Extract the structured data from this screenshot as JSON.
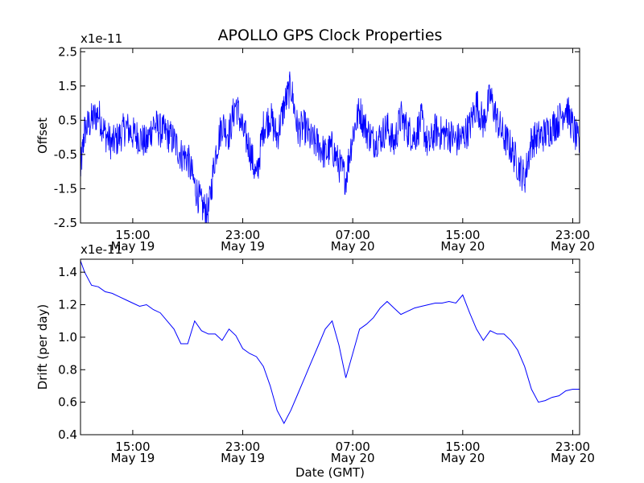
{
  "chart_data": [
    {
      "type": "line",
      "title": "APOLLO GPS Clock Properties",
      "ylabel": "Offset",
      "xlabel": "",
      "y_multiplier": "x1e-11",
      "ylim": [
        -2.5,
        2.6
      ],
      "xlim_hours": [
        11.2,
        47.5
      ],
      "x_ticks": [
        {
          "time": "15:00",
          "date": "May 19"
        },
        {
          "time": "23:00",
          "date": "May 19"
        },
        {
          "time": "07:00",
          "date": "May 20"
        },
        {
          "time": "15:00",
          "date": "May 20"
        },
        {
          "time": "23:00",
          "date": "May 20"
        }
      ],
      "y_ticks": [
        "2.5",
        "1.5",
        "0.5",
        "-0.5",
        "-1.5",
        "-2.5"
      ],
      "color": "#0000ff",
      "series": [
        {
          "x": [
            11.2,
            11.5,
            12.0,
            12.5,
            13.0,
            13.5,
            14.0,
            14.5,
            15.0,
            15.5,
            16.0,
            16.5,
            17.0,
            17.5,
            18.0,
            18.5,
            19.0,
            19.5,
            20.0,
            20.5,
            21.0,
            21.5,
            22.0,
            22.5,
            23.0,
            23.5,
            24.0,
            24.5,
            25.0,
            25.5,
            26.0,
            26.5,
            27.0,
            27.5,
            28.0,
            28.5,
            29.0,
            29.5,
            30.0,
            30.5,
            31.0,
            31.5,
            32.0,
            32.5,
            33.0,
            33.5,
            34.0,
            34.5,
            35.0,
            35.5,
            36.0,
            36.5,
            37.0,
            37.5,
            38.0,
            38.5,
            39.0,
            39.5,
            40.0,
            40.5,
            41.0,
            41.5,
            42.0,
            42.5,
            43.0,
            43.5,
            44.0,
            44.5,
            45.0,
            45.5,
            46.0,
            46.5,
            47.0,
            47.5
          ],
          "y": [
            -1.0,
            0.2,
            0.5,
            0.7,
            0.1,
            -0.2,
            0.0,
            0.3,
            0.1,
            0.0,
            -0.2,
            0.4,
            0.2,
            0.1,
            -0.1,
            -0.5,
            -0.6,
            -1.4,
            -2.0,
            -2.2,
            -0.5,
            0.4,
            0.1,
            1.0,
            0.2,
            -0.3,
            -1.2,
            0.3,
            0.6,
            0.0,
            0.9,
            1.5,
            0.2,
            0.3,
            -0.1,
            -0.2,
            -0.5,
            -0.3,
            -0.8,
            -1.2,
            0.1,
            0.8,
            0.2,
            -0.1,
            0.0,
            0.3,
            -0.2,
            0.6,
            0.2,
            0.0,
            0.5,
            -0.3,
            0.2,
            0.1,
            0.1,
            -0.1,
            0.0,
            0.3,
            1.0,
            0.4,
            1.2,
            0.5,
            0.0,
            -0.3,
            -0.8,
            -1.2,
            -0.1,
            0.0,
            0.1,
            0.3,
            0.5,
            0.9,
            0.3,
            -0.3
          ]
        }
      ]
    },
    {
      "type": "line",
      "title": "",
      "ylabel": "Drift (per day)",
      "xlabel": "Date (GMT)",
      "y_multiplier": "x1e-11",
      "ylim": [
        0.4,
        1.48
      ],
      "xlim_hours": [
        11.2,
        47.5
      ],
      "x_ticks": [
        {
          "time": "15:00",
          "date": "May 19"
        },
        {
          "time": "23:00",
          "date": "May 19"
        },
        {
          "time": "07:00",
          "date": "May 20"
        },
        {
          "time": "15:00",
          "date": "May 20"
        },
        {
          "time": "23:00",
          "date": "May 20"
        }
      ],
      "y_ticks": [
        "1.4",
        "1.2",
        "1.0",
        "0.8",
        "0.6",
        "0.4"
      ],
      "color": "#0000ff",
      "series": [
        {
          "x": [
            11.2,
            11.5,
            12.0,
            12.5,
            13.0,
            13.5,
            14.0,
            14.5,
            15.0,
            15.5,
            16.0,
            16.5,
            17.0,
            17.5,
            18.0,
            18.5,
            19.0,
            19.5,
            20.0,
            20.5,
            21.0,
            21.5,
            22.0,
            22.5,
            23.0,
            23.5,
            24.0,
            24.5,
            25.0,
            25.5,
            26.0,
            26.5,
            27.0,
            27.5,
            28.0,
            28.5,
            29.0,
            29.5,
            30.0,
            30.5,
            31.0,
            31.5,
            32.0,
            32.5,
            33.0,
            33.5,
            34.0,
            34.5,
            35.0,
            35.5,
            36.0,
            36.5,
            37.0,
            37.5,
            38.0,
            38.5,
            39.0,
            39.5,
            40.0,
            40.5,
            41.0,
            41.5,
            42.0,
            42.5,
            43.0,
            43.5,
            44.0,
            44.5,
            45.0,
            45.5,
            46.0,
            46.5,
            47.0,
            47.5
          ],
          "y": [
            1.47,
            1.4,
            1.32,
            1.31,
            1.28,
            1.27,
            1.25,
            1.23,
            1.21,
            1.19,
            1.2,
            1.17,
            1.15,
            1.1,
            1.05,
            0.96,
            0.96,
            1.1,
            1.04,
            1.02,
            1.02,
            0.98,
            1.05,
            1.01,
            0.93,
            0.9,
            0.88,
            0.82,
            0.7,
            0.55,
            0.47,
            0.55,
            0.65,
            0.75,
            0.85,
            0.95,
            1.05,
            1.1,
            0.95,
            0.75,
            0.9,
            1.05,
            1.08,
            1.12,
            1.18,
            1.22,
            1.18,
            1.14,
            1.16,
            1.18,
            1.19,
            1.2,
            1.21,
            1.21,
            1.22,
            1.21,
            1.26,
            1.15,
            1.05,
            0.98,
            1.04,
            1.02,
            1.02,
            0.98,
            0.92,
            0.82,
            0.68,
            0.6,
            0.61,
            0.63,
            0.64,
            0.67,
            0.68,
            0.68
          ]
        }
      ]
    }
  ]
}
